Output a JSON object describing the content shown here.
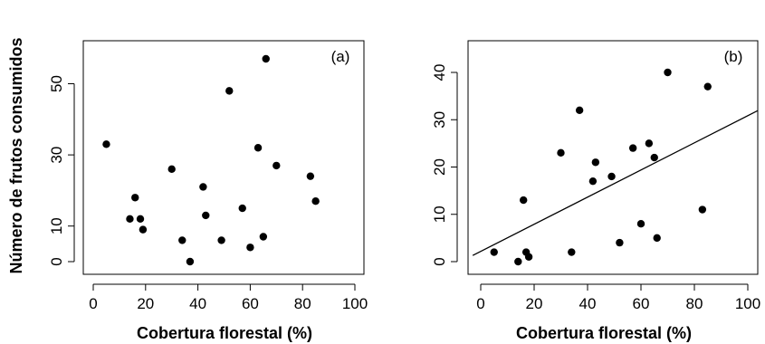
{
  "ylabel": "Número de frutos consumidos",
  "chart_data": [
    {
      "type": "scatter",
      "panel_label": "(a)",
      "xlabel": "Cobertura florestal (%)",
      "xlim": [
        0,
        100
      ],
      "ylim": [
        0,
        57
      ],
      "xticks": [
        0,
        20,
        40,
        60,
        80,
        100
      ],
      "yticks": [
        0,
        10,
        30,
        50
      ],
      "points": [
        {
          "x": 5,
          "y": 33
        },
        {
          "x": 14,
          "y": 12
        },
        {
          "x": 16,
          "y": 18
        },
        {
          "x": 18,
          "y": 12
        },
        {
          "x": 19,
          "y": 9
        },
        {
          "x": 30,
          "y": 26
        },
        {
          "x": 34,
          "y": 6
        },
        {
          "x": 37,
          "y": 0
        },
        {
          "x": 42,
          "y": 21
        },
        {
          "x": 43,
          "y": 13
        },
        {
          "x": 49,
          "y": 6
        },
        {
          "x": 52,
          "y": 48
        },
        {
          "x": 57,
          "y": 15
        },
        {
          "x": 60,
          "y": 4
        },
        {
          "x": 63,
          "y": 32
        },
        {
          "x": 65,
          "y": 7
        },
        {
          "x": 66,
          "y": 57
        },
        {
          "x": 70,
          "y": 27
        },
        {
          "x": 83,
          "y": 24
        },
        {
          "x": 85,
          "y": 17
        }
      ]
    },
    {
      "type": "scatter",
      "panel_label": "(b)",
      "xlabel": "Cobertura florestal (%)",
      "xlim": [
        0,
        100
      ],
      "ylim": [
        0,
        40
      ],
      "xticks": [
        0,
        20,
        40,
        60,
        80,
        100
      ],
      "yticks": [
        0,
        10,
        20,
        30,
        40
      ],
      "points": [
        {
          "x": 5,
          "y": 2
        },
        {
          "x": 14,
          "y": 0
        },
        {
          "x": 16,
          "y": 13
        },
        {
          "x": 17,
          "y": 2
        },
        {
          "x": 18,
          "y": 1
        },
        {
          "x": 30,
          "y": 23
        },
        {
          "x": 34,
          "y": 2
        },
        {
          "x": 37,
          "y": 32
        },
        {
          "x": 42,
          "y": 17
        },
        {
          "x": 43,
          "y": 21
        },
        {
          "x": 49,
          "y": 18
        },
        {
          "x": 52,
          "y": 4
        },
        {
          "x": 57,
          "y": 24
        },
        {
          "x": 60,
          "y": 8
        },
        {
          "x": 63,
          "y": 25
        },
        {
          "x": 65,
          "y": 22
        },
        {
          "x": 66,
          "y": 5
        },
        {
          "x": 70,
          "y": 40
        },
        {
          "x": 83,
          "y": 11
        },
        {
          "x": 85,
          "y": 37
        }
      ],
      "fit_line": {
        "x": [
          -3,
          104
        ],
        "y": [
          1.3,
          32
        ]
      }
    }
  ]
}
